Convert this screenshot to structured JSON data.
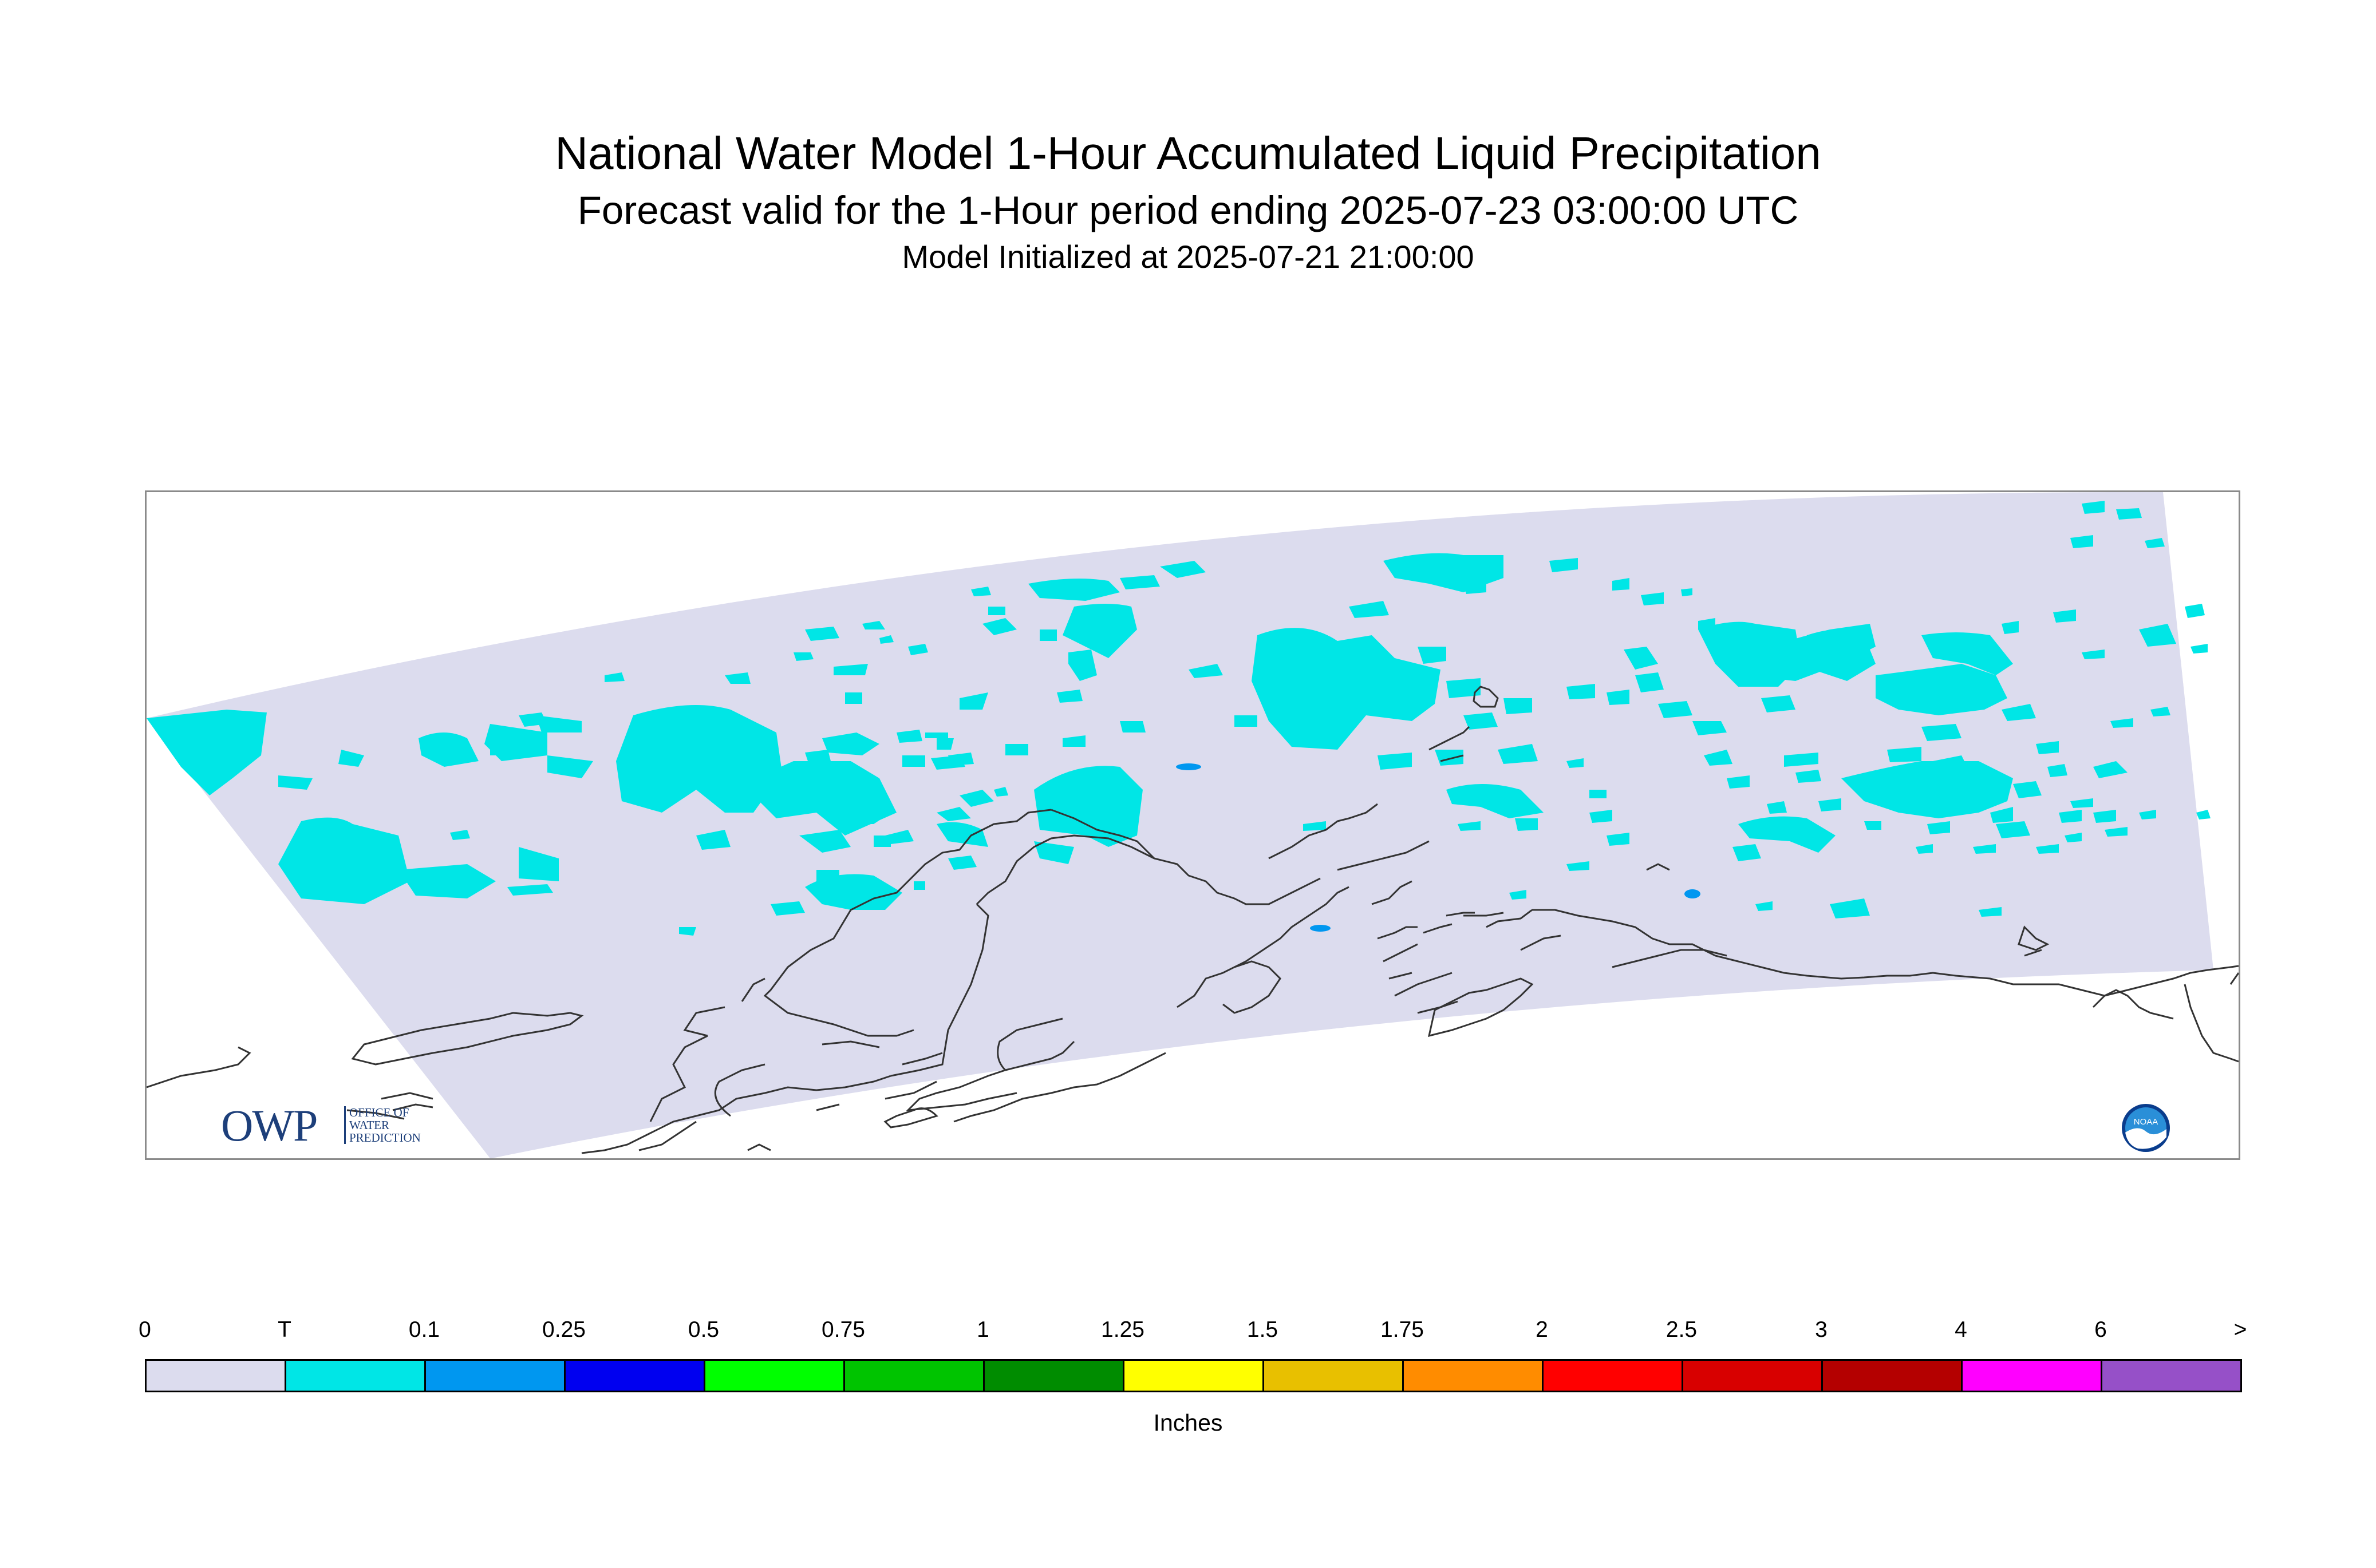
{
  "titles": {
    "main": "National Water Model 1-Hour Accumulated Liquid Precipitation",
    "sub": "Forecast valid for the 1-Hour period ending 2025-07-23 03:00:00 UTC",
    "init": "Model Initialized at 2025-07-21 21:00:00"
  },
  "logos": {
    "owp_letters": "OWP",
    "owp_line1": "OFFICE OF",
    "owp_line2": "WATER",
    "owp_line3": "PREDICTION",
    "noaa_text": "NOAA"
  },
  "legend": {
    "units": "Inches",
    "tick_labels": [
      "0",
      "T",
      "0.1",
      "0.25",
      "0.5",
      "0.75",
      "1",
      "1.25",
      "1.5",
      "1.75",
      "2",
      "2.5",
      "3",
      "4",
      "6",
      ">"
    ],
    "colors": [
      "#dcdcee",
      "#00e6e6",
      "#0097f0",
      "#0000f0",
      "#00ff00",
      "#00c400",
      "#008c00",
      "#ffff00",
      "#e8c000",
      "#ff8c00",
      "#ff0000",
      "#d80000",
      "#b40000",
      "#ff00ff",
      "#9650c8"
    ]
  },
  "map": {
    "background_color": "#dcdcee",
    "trace_color": "#00e6e6",
    "light_rain_color": "#0097f0",
    "coastline_color": "#333333",
    "region": "Alaska"
  }
}
